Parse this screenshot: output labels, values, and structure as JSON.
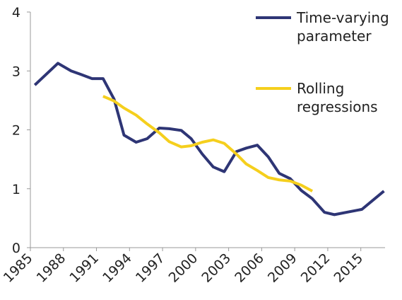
{
  "chart_data": {
    "type": "line",
    "xlim": [
      1985,
      2017.2
    ],
    "ylim": [
      0,
      4
    ],
    "xticks": [
      1985,
      1988,
      1991,
      1994,
      1997,
      2000,
      2003,
      2006,
      2009,
      2012,
      2015
    ],
    "yticks": [
      0,
      1,
      2,
      3,
      4
    ],
    "series": [
      {
        "name": "Time-varying parameter",
        "color": "#2e3575",
        "x": [
          1985.4,
          1987.5,
          1988.7,
          1989.6,
          1990.6,
          1991.6,
          1992.6,
          1993.5,
          1994.6,
          1995.6,
          1996.7,
          1997.6,
          1998.7,
          1999.6,
          2000.6,
          2001.6,
          2002.6,
          2003.7,
          2004.6,
          2005.6,
          2006.6,
          2007.6,
          2008.6,
          2009.6,
          2010.6,
          2011.7,
          2012.6,
          2013.7,
          2015.1,
          2017.1
        ],
        "values": [
          2.76,
          3.13,
          3.0,
          2.94,
          2.87,
          2.87,
          2.52,
          1.91,
          1.79,
          1.85,
          2.03,
          2.02,
          1.99,
          1.85,
          1.59,
          1.37,
          1.29,
          1.63,
          1.69,
          1.74,
          1.54,
          1.26,
          1.17,
          0.97,
          0.83,
          0.6,
          0.56,
          0.6,
          0.65,
          0.96
        ]
      },
      {
        "name": "Rolling regressions",
        "color": "#f5cf1d",
        "x": [
          1991.6,
          1992.6,
          1993.5,
          1994.6,
          1995.6,
          1996.7,
          1997.6,
          1998.7,
          1999.6,
          2000.6,
          2001.6,
          2002.6,
          2003.7,
          2004.6,
          2005.6,
          2006.6,
          2007.6,
          2008.6,
          2009.6,
          2010.6
        ],
        "values": [
          2.57,
          2.49,
          2.37,
          2.25,
          2.1,
          1.95,
          1.8,
          1.71,
          1.73,
          1.79,
          1.83,
          1.77,
          1.59,
          1.42,
          1.31,
          1.19,
          1.15,
          1.13,
          1.06,
          0.96
        ]
      }
    ]
  }
}
